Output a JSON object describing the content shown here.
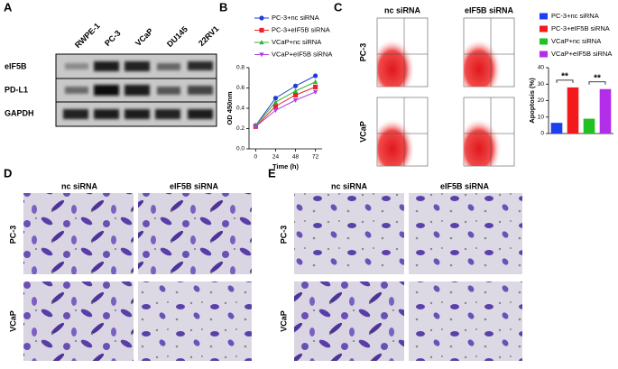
{
  "panel_labels": [
    "A",
    "B",
    "C",
    "D",
    "E"
  ],
  "blot": {
    "lanes": [
      "RWPE-1",
      "PC-3",
      "VCaP",
      "DU145",
      "22RV1"
    ],
    "rows": [
      "eIF5B",
      "PD-L1",
      "GAPDH"
    ]
  },
  "flow": {
    "columns": [
      "nc siRNA",
      "eIF5B siRNA"
    ],
    "rows": [
      "PC-3",
      "VCaP"
    ]
  },
  "panel_d": {
    "columns": [
      "nc siRNA",
      "eIF5B siRNA"
    ],
    "rows": [
      "PC-3",
      "VCaP"
    ]
  },
  "panel_e": {
    "columns": [
      "nc siRNA",
      "eIF5B siRNA"
    ],
    "rows": [
      "PC-3",
      "VCaP"
    ]
  },
  "chart_data": [
    {
      "type": "line",
      "xlabel": "Time (h)",
      "ylabel": "OD 450nm",
      "x": [
        0,
        24,
        48,
        72
      ],
      "xlim": [
        -8,
        80
      ],
      "xticks": [
        0,
        24,
        48,
        72
      ],
      "ylim": [
        0,
        0.8
      ],
      "yticks": [
        {
          "value": 0,
          "label": "0.0"
        },
        0.2,
        0.4,
        0.6,
        0.8
      ],
      "legend": "top",
      "series": [
        {
          "name": "PC-3+nc siRNA",
          "color": "#1f3fd6",
          "marker": "circle",
          "values": [
            0.23,
            0.5,
            0.62,
            0.72
          ]
        },
        {
          "name": "PC-3+eIF5B siRNA",
          "color": "#e8242a",
          "marker": "square",
          "values": [
            0.22,
            0.42,
            0.53,
            0.61
          ]
        },
        {
          "name": "VCaP+nc siRNA",
          "color": "#2fb52f",
          "marker": "triangle",
          "values": [
            0.23,
            0.46,
            0.57,
            0.66
          ]
        },
        {
          "name": "VCaP+eIF5B siRNA",
          "color": "#b23ee0",
          "marker": "triangle-down",
          "values": [
            0.22,
            0.38,
            0.48,
            0.56
          ]
        }
      ]
    },
    {
      "type": "bar",
      "ylabel": "Apoptosis (%)",
      "ylim": [
        0,
        40
      ],
      "yticks": [
        0,
        10,
        20,
        30,
        40
      ],
      "legend": "top",
      "series": [
        {
          "name": "PC-3+nc siRNA",
          "color": "#1c3ff0",
          "values": [
            6.5
          ]
        },
        {
          "name": "PC-3+eIF5B siRNA",
          "color": "#f21a1a",
          "values": [
            28
          ]
        },
        {
          "name": "VCaP+nc siRNA",
          "color": "#22c122",
          "values": [
            9
          ]
        },
        {
          "name": "VCaP+eIF5B siRNA",
          "color": "#b22ee8",
          "values": [
            27
          ]
        }
      ],
      "annotations": [
        "**",
        "**"
      ]
    }
  ]
}
